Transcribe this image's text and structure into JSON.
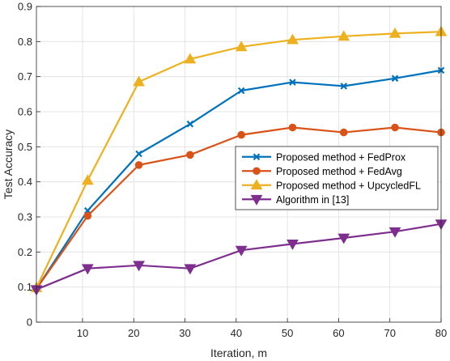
{
  "chart_data": {
    "type": "line",
    "xlabel": "Iteration, m",
    "ylabel": "Test Accuracy",
    "xlim": [
      1,
      80
    ],
    "ylim": [
      0,
      0.9
    ],
    "x_ticks": [
      10,
      20,
      30,
      40,
      50,
      60,
      70,
      80
    ],
    "y_ticks": [
      0,
      0.1,
      0.2,
      0.3,
      0.4,
      0.5,
      0.6,
      0.7,
      0.8,
      0.9
    ],
    "x_tick_labels": [
      "10",
      "20",
      "30",
      "40",
      "50",
      "60",
      "70",
      "80"
    ],
    "y_tick_labels": [
      "0",
      "0.1",
      "0.2",
      "0.3",
      "0.4",
      "0.5",
      "0.6",
      "0.7",
      "0.8",
      "0.9"
    ],
    "grid": true,
    "legend_position": "right",
    "x": [
      1,
      11,
      21,
      31,
      41,
      51,
      61,
      71,
      80
    ],
    "series": [
      {
        "name": "Proposed method + FedProx",
        "color": "#0072BD",
        "marker": "x",
        "values": [
          0.095,
          0.318,
          0.48,
          0.565,
          0.66,
          0.684,
          0.673,
          0.695,
          0.718
        ]
      },
      {
        "name": "Proposed method + FedAvg",
        "color": "#D95319",
        "marker": "circle",
        "values": [
          0.095,
          0.303,
          0.448,
          0.477,
          0.534,
          0.555,
          0.541,
          0.555,
          0.541
        ]
      },
      {
        "name": "Proposed method + UpcycledFL",
        "color": "#EDB120",
        "marker": "triangle-up",
        "values": [
          0.098,
          0.404,
          0.685,
          0.75,
          0.785,
          0.805,
          0.815,
          0.823,
          0.828
        ]
      },
      {
        "name": "Algorithm in [13]",
        "color": "#7E2F8E",
        "marker": "triangle-down",
        "values": [
          0.093,
          0.153,
          0.162,
          0.153,
          0.205,
          0.223,
          0.24,
          0.258,
          0.28
        ]
      }
    ]
  }
}
